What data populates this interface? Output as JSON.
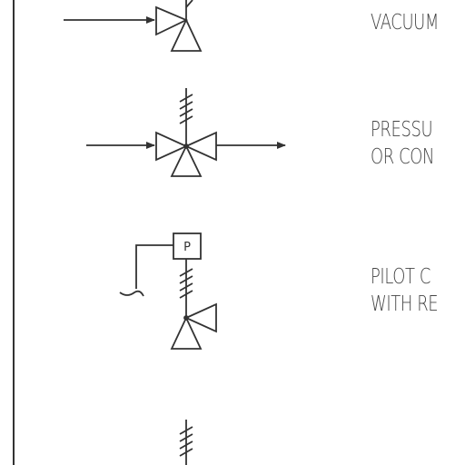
{
  "symbols": [
    {
      "label_lines": [
        "VACUUM"
      ]
    },
    {
      "label_lines": [
        "PRESSU",
        "OR CON"
      ]
    },
    {
      "label_lines": [
        "PILOT C",
        "WITH RE"
      ],
      "pilot_box_letter": "P"
    },
    {
      "label_lines": []
    }
  ]
}
